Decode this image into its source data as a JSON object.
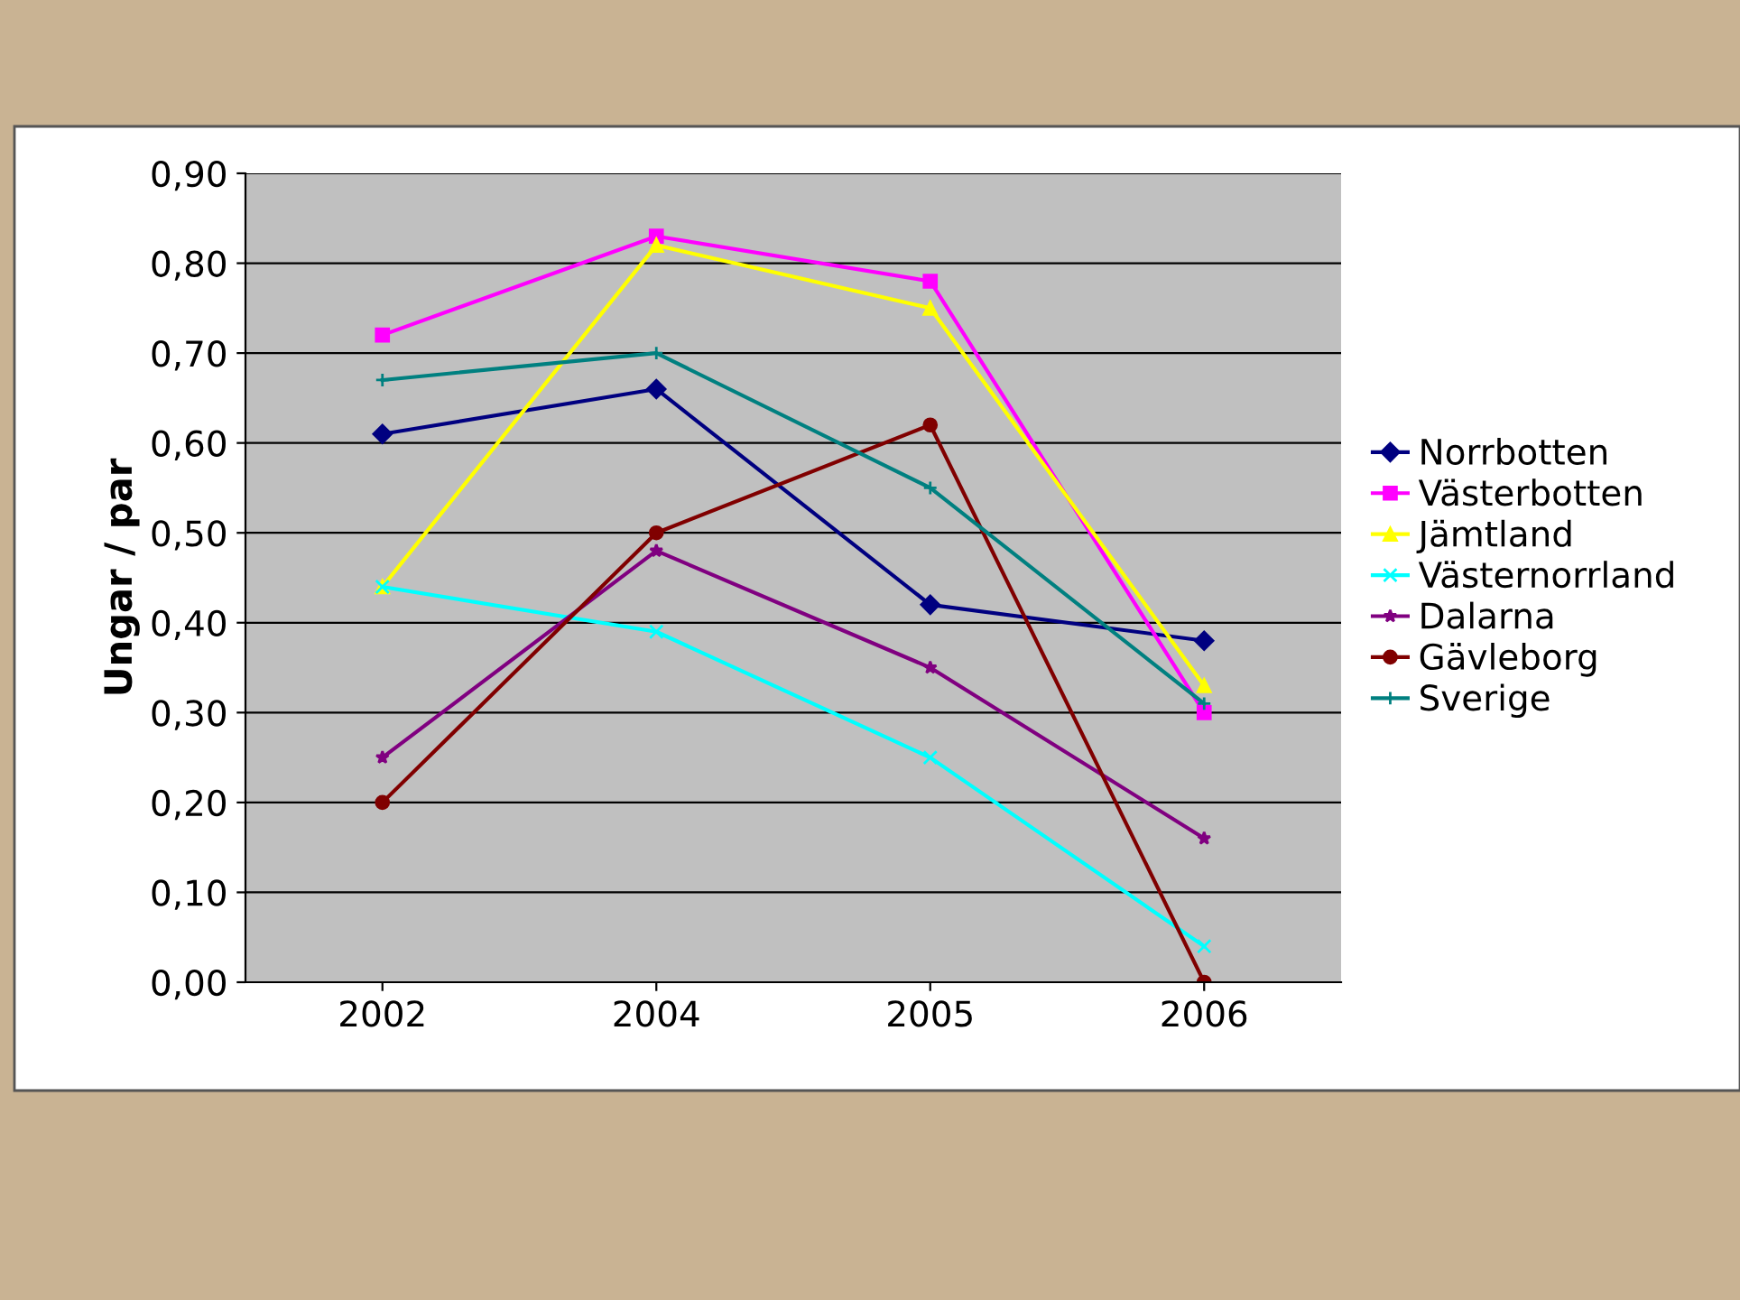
{
  "chart_data": {
    "type": "line",
    "ylabel": "Ungar / par",
    "categories": [
      "2002",
      "2004",
      "2005",
      "2006"
    ],
    "series": [
      {
        "name": "Norrbotten",
        "color": "#000080",
        "marker": "diamond",
        "values": [
          0.61,
          0.66,
          0.42,
          0.38
        ]
      },
      {
        "name": "Västerbotten",
        "color": "#ff00ff",
        "marker": "square",
        "values": [
          0.72,
          0.83,
          0.78,
          0.3
        ]
      },
      {
        "name": "Jämtland",
        "color": "#ffff00",
        "marker": "triangle",
        "values": [
          0.44,
          0.82,
          0.75,
          0.33
        ]
      },
      {
        "name": "Västernorrland",
        "color": "#00ffff",
        "marker": "cross",
        "values": [
          0.44,
          0.39,
          0.25,
          0.04
        ]
      },
      {
        "name": "Dalarna",
        "color": "#800080",
        "marker": "star",
        "values": [
          0.25,
          0.48,
          0.35,
          0.16
        ]
      },
      {
        "name": "Gävleborg",
        "color": "#800000",
        "marker": "circle",
        "values": [
          0.2,
          0.5,
          0.62,
          0.0
        ]
      },
      {
        "name": "Sverige",
        "color": "#008080",
        "marker": "plus",
        "values": [
          0.67,
          0.7,
          0.55,
          0.31
        ]
      }
    ],
    "ylim": [
      0,
      0.9
    ],
    "yticks": [
      {
        "value": 0,
        "label": "0,00"
      },
      {
        "value": 0.1,
        "label": "0,10"
      },
      {
        "value": 0.2,
        "label": "0,20"
      },
      {
        "value": 0.3,
        "label": "0,30"
      },
      {
        "value": 0.4,
        "label": "0,40"
      },
      {
        "value": 0.5,
        "label": "0,50"
      },
      {
        "value": 0.6,
        "label": "0,60"
      },
      {
        "value": 0.7,
        "label": "0,70"
      },
      {
        "value": 0.8,
        "label": "0,80"
      },
      {
        "value": 0.9,
        "label": "0,90"
      }
    ],
    "grid": "y",
    "legend": "right",
    "line_style": "solid"
  }
}
